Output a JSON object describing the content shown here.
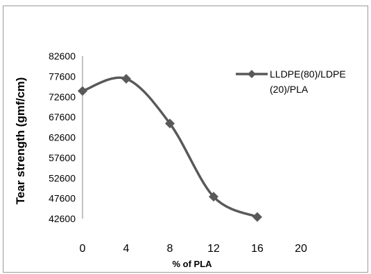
{
  "chart_data": {
    "type": "line",
    "x": [
      0,
      4,
      8,
      12,
      16
    ],
    "series": [
      {
        "name": "LLDPE(80)/LDPE(20)/PLA",
        "legend_lines": [
          "LLDPE(80)/LDPE",
          "(20)/PLA"
        ],
        "values": [
          74000,
          77000,
          66000,
          48000,
          43000
        ]
      }
    ],
    "xlabel": "% of PLA",
    "ylabel": "Tear strength (gmf/cm)",
    "xticks": [
      0,
      4,
      8,
      12,
      16,
      20
    ],
    "yticks": [
      42600,
      47600,
      52600,
      57600,
      62600,
      67600,
      72600,
      77600,
      82600
    ],
    "xlim": [
      0,
      20
    ],
    "ylim": [
      42600,
      82600
    ],
    "grid": false,
    "smooth": true,
    "marker": "diamond",
    "line_color": "#595959",
    "legend_position": "right"
  }
}
